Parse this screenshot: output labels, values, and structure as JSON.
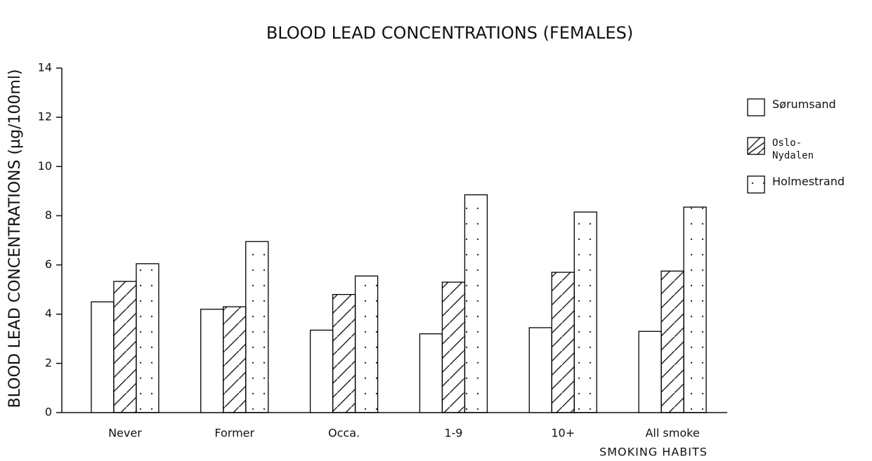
{
  "chart_data": {
    "type": "bar",
    "title": "BLOOD LEAD CONCENTRATIONS (FEMALES)",
    "y_label": "BLOOD LEAD CONCENTRATIONS (µg/100ml)",
    "x_label": "SMOKING HABITS",
    "categories": [
      "Never",
      "Former",
      "Occa.",
      "1-9",
      "10+",
      "All smoke"
    ],
    "series": [
      {
        "name": "Sørumsand",
        "color": "#000000",
        "pattern": "none",
        "values": [
          4.5,
          4.2,
          3.35,
          3.2,
          3.45,
          3.3
        ]
      },
      {
        "name": "Oslo-Nydalen",
        "color": "#000000",
        "pattern": "hatch",
        "values": [
          5.33,
          4.3,
          4.8,
          5.3,
          5.7,
          5.75
        ]
      },
      {
        "name": "Holmestrand",
        "color": "#000000",
        "pattern": "dots",
        "values": [
          6.05,
          6.95,
          5.55,
          8.85,
          8.15,
          8.35
        ]
      }
    ],
    "ylim": [
      0,
      14
    ],
    "yticks": [
      0,
      2,
      4,
      6,
      8,
      10,
      12,
      14
    ],
    "legend": "right"
  }
}
